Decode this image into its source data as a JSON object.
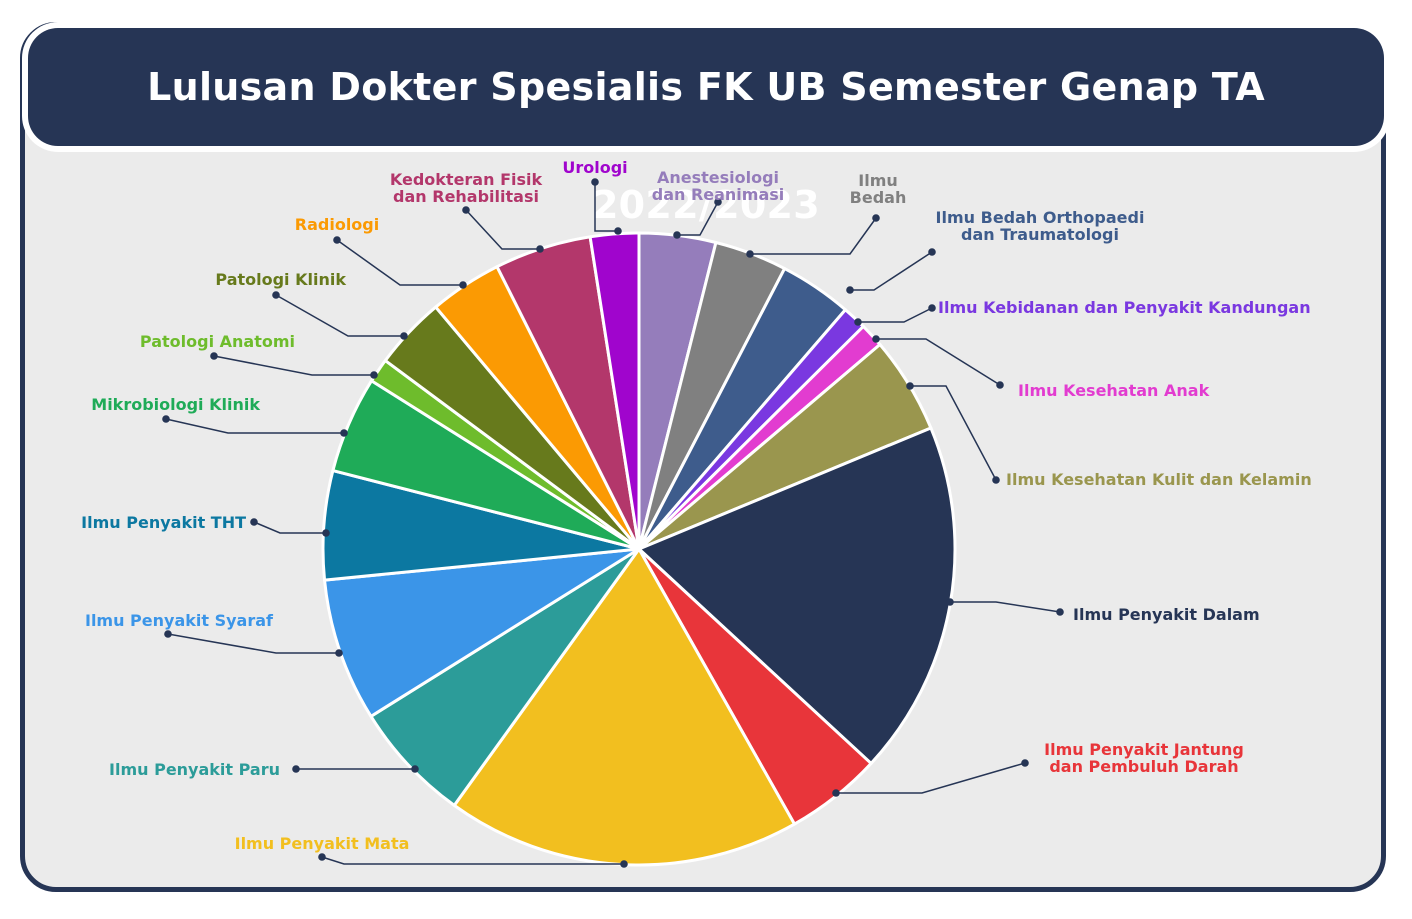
{
  "header": {
    "title": "Lulusan Dokter Spesialis FK UB Semester Genap TA 2022/2023"
  },
  "colors": {
    "frame": "#263555",
    "background": "#ebebeb",
    "leader": "#263555"
  },
  "chart_data": {
    "type": "pie",
    "title": "Lulusan Dokter Spesialis FK UB Semester Genap TA 2022/2023",
    "start": "top",
    "direction": "clockwise",
    "value_unit": "share_of_total_percent",
    "slices": [
      {
        "name": "Anestesiologi dan Reanimasi",
        "lines": [
          "Anestesiologi",
          "dan Reanimasi"
        ],
        "value": 3.8,
        "color": "#957dbb",
        "label_color": "#957dbb"
      },
      {
        "name": "Ilmu Bedah",
        "lines": [
          "Ilmu",
          "Bedah"
        ],
        "value": 3.6,
        "color": "#808080",
        "label_color": "#808080"
      },
      {
        "name": "Ilmu Bedah Orthopaedi dan Traumatologi",
        "lines": [
          "Ilmu Bedah Orthopaedi",
          "dan Traumatologi"
        ],
        "value": 3.6,
        "color": "#3e5c8c",
        "label_color": "#3e5c8c"
      },
      {
        "name": "Ilmu Kebidanan dan Penyakit Kandungan",
        "lines": [
          "Ilmu Kebidanan dan Penyakit Kandungan"
        ],
        "value": 1.2,
        "color": "#7a38e0",
        "label_color": "#7a38e0"
      },
      {
        "name": "Ilmu Kesehatan Anak",
        "lines": [
          "Ilmu Kesehatan Anak"
        ],
        "value": 1.2,
        "color": "#e23cd0",
        "label_color": "#e23cd0"
      },
      {
        "name": "Ilmu Kesehatan Kulit dan Kelamin",
        "lines": [
          "Ilmu Kesehatan Kulit dan Kelamin"
        ],
        "value": 4.8,
        "color": "#9a964e",
        "label_color": "#9a964e"
      },
      {
        "name": "Ilmu Penyakit Dalam",
        "lines": [
          "Ilmu Penyakit Dalam"
        ],
        "value": 17.6,
        "color": "#263555",
        "label_color": "#263555"
      },
      {
        "name": "Ilmu Penyakit Jantung dan Pembuluh Darah",
        "lines": [
          "Ilmu Penyakit Jantung",
          "dan Pembuluh Darah"
        ],
        "value": 4.8,
        "color": "#e8353a",
        "label_color": "#e8353a"
      },
      {
        "name": "Ilmu Penyakit Mata",
        "lines": [
          "Ilmu Penyakit Mata"
        ],
        "value": 17.6,
        "color": "#f2bf1f",
        "label_color": "#f2bf1f"
      },
      {
        "name": "Ilmu Penyakit Paru",
        "lines": [
          "Ilmu Penyakit Paru"
        ],
        "value": 6.0,
        "color": "#2c9c99",
        "label_color": "#2c9c99"
      },
      {
        "name": "Ilmu Penyakit Syaraf",
        "lines": [
          "Ilmu Penyakit Syaraf"
        ],
        "value": 7.1,
        "color": "#3b95e8",
        "label_color": "#3b95e8"
      },
      {
        "name": "Ilmu Penyakit THT",
        "lines": [
          "Ilmu Penyakit THT"
        ],
        "value": 5.4,
        "color": "#0c78a1",
        "label_color": "#0c78a1"
      },
      {
        "name": "Mikrobiologi Klinik",
        "lines": [
          "Mikrobiologi Klinik"
        ],
        "value": 4.8,
        "color": "#1fab58",
        "label_color": "#1fab58"
      },
      {
        "name": "Patologi Anatomi",
        "lines": [
          "Patologi Anatomi"
        ],
        "value": 1.2,
        "color": "#6ebc2c",
        "label_color": "#6ebc2c"
      },
      {
        "name": "Patologi Klinik",
        "lines": [
          "Patologi Klinik"
        ],
        "value": 3.6,
        "color": "#677a1c",
        "label_color": "#677a1c"
      },
      {
        "name": "Radiologi",
        "lines": [
          "Radiologi"
        ],
        "value": 3.6,
        "color": "#fb9a03",
        "label_color": "#fb9a03"
      },
      {
        "name": "Kedokteran Fisik dan Rehabilitasi",
        "lines": [
          "Kedokteran Fisik",
          "dan Rehabilitasi"
        ],
        "value": 4.8,
        "color": "#b3376b",
        "label_color": "#b3376b"
      },
      {
        "name": "Urologi",
        "lines": [
          "Urologi"
        ],
        "value": 2.4,
        "color": "#a005cd",
        "label_color": "#a005cd"
      }
    ]
  }
}
